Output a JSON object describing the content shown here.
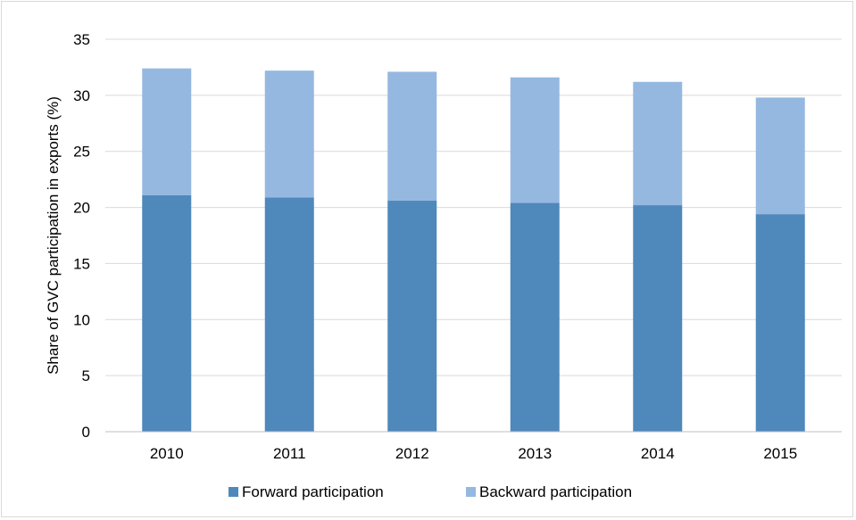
{
  "chart_data": {
    "type": "bar",
    "stacked": true,
    "categories": [
      "2010",
      "2011",
      "2012",
      "2013",
      "2014",
      "2015"
    ],
    "series": [
      {
        "name": "Forward participation",
        "color": "#4f88bb",
        "values": [
          21.1,
          20.9,
          20.6,
          20.4,
          20.2,
          19.4
        ]
      },
      {
        "name": "Backward participation",
        "color": "#95b8e0",
        "values": [
          11.3,
          11.3,
          11.5,
          11.2,
          11.0,
          10.4
        ]
      }
    ],
    "title": "",
    "xlabel": "",
    "ylabel": "Share of GVC participation in exports (%)",
    "ylim": [
      0,
      35
    ],
    "yticks": [
      "0",
      "5",
      "10",
      "15",
      "20",
      "25",
      "30",
      "35"
    ],
    "grid": true,
    "legend_position": "bottom"
  }
}
